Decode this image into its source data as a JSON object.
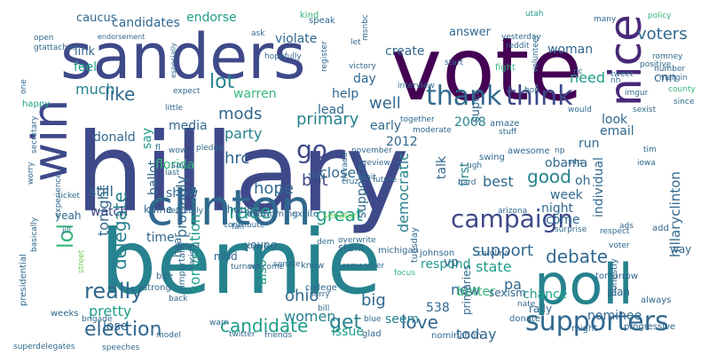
{
  "palette": {
    "c0": "#440154",
    "c1": "#482878",
    "c2": "#3e4989",
    "c3": "#31688e",
    "c4": "#26828e",
    "c5": "#1f9e89",
    "c6": "#35b779",
    "c7": "#6ece58",
    "c8": "#b5de2b",
    "c9": "#fde725"
  },
  "words": [
    {
      "text": "hillary",
      "c": "c2"
    },
    {
      "text": "vote",
      "c": "c0"
    },
    {
      "text": "bernie",
      "c": "c4"
    },
    {
      "text": "sanders",
      "c": "c2"
    },
    {
      "text": "clinton",
      "c": "c3"
    },
    {
      "text": "poll",
      "c": "c4"
    },
    {
      "text": "campaign",
      "c": "c2"
    },
    {
      "text": "win",
      "c": "c2"
    },
    {
      "text": "thank",
      "c": "c3"
    },
    {
      "text": "think",
      "c": "c2"
    },
    {
      "text": "nice",
      "c": "c1"
    },
    {
      "text": "supporters",
      "c": "c3"
    },
    {
      "text": "go",
      "c": "c2"
    },
    {
      "text": "really",
      "c": "c3"
    },
    {
      "text": "election",
      "c": "c3"
    },
    {
      "text": "like",
      "c": "c3"
    },
    {
      "text": "lol",
      "c": "c6"
    },
    {
      "text": "delegate",
      "c": "c4"
    },
    {
      "text": "convention",
      "c": "c5"
    },
    {
      "text": "candidate",
      "c": "c5"
    },
    {
      "text": "debate",
      "c": "c3"
    },
    {
      "text": "support",
      "c": "c3"
    },
    {
      "text": "primary",
      "c": "c4"
    },
    {
      "text": "get",
      "c": "c4"
    },
    {
      "text": "love",
      "c": "c3"
    },
    {
      "text": "great",
      "c": "c5"
    },
    {
      "text": "race",
      "c": "c5"
    },
    {
      "text": "democratic",
      "c": "c4"
    },
    {
      "text": "hillaryclinton",
      "c": "c3"
    },
    {
      "text": "voters",
      "c": "c3"
    },
    {
      "text": "lot",
      "c": "c4"
    },
    {
      "text": "mods",
      "c": "c3"
    },
    {
      "text": "party",
      "c": "c4"
    },
    {
      "text": "hrc",
      "c": "c3"
    },
    {
      "text": "hope",
      "c": "c3"
    },
    {
      "text": "good",
      "c": "c4"
    },
    {
      "text": "big",
      "c": "c3"
    },
    {
      "text": "women",
      "c": "c4"
    },
    {
      "text": "ohio",
      "c": "c3"
    },
    {
      "text": "pretty",
      "c": "c5"
    },
    {
      "text": "tonight",
      "c": "c3"
    },
    {
      "text": "bot",
      "c": "c2"
    },
    {
      "text": "close",
      "c": "c3"
    },
    {
      "text": "respond",
      "c": "c5"
    },
    {
      "text": "state",
      "c": "c5"
    },
    {
      "text": "today",
      "c": "c3"
    },
    {
      "text": "seem",
      "c": "c4"
    },
    {
      "text": "nominee",
      "c": "c3"
    },
    {
      "text": "new",
      "c": "c3"
    },
    {
      "text": "issue",
      "c": "c5"
    },
    {
      "text": "probably",
      "c": "c3"
    },
    {
      "text": "still",
      "c": "c3"
    },
    {
      "text": "watch",
      "c": "c2"
    },
    {
      "text": "better",
      "c": "c6"
    },
    {
      "text": "night",
      "c": "c3"
    },
    {
      "text": "week",
      "c": "c3"
    },
    {
      "text": "come",
      "c": "c3"
    },
    {
      "text": "obama",
      "c": "c3"
    },
    {
      "text": "best",
      "c": "c3"
    },
    {
      "text": "run",
      "c": "c3"
    },
    {
      "text": "email",
      "c": "c3"
    },
    {
      "text": "look",
      "c": "c3"
    },
    {
      "text": "need",
      "c": "c5"
    },
    {
      "text": "woman",
      "c": "c3"
    },
    {
      "text": "answer",
      "c": "c3"
    },
    {
      "text": "create",
      "c": "c3"
    },
    {
      "text": "violate",
      "c": "c3"
    },
    {
      "text": "endorse",
      "c": "c5"
    },
    {
      "text": "candidates",
      "c": "c3"
    },
    {
      "text": "day",
      "c": "c3"
    },
    {
      "text": "caucus",
      "c": "c3"
    },
    {
      "text": "link",
      "c": "c3"
    },
    {
      "text": "feel",
      "c": "c5"
    },
    {
      "text": "much",
      "c": "c4"
    },
    {
      "text": "donald",
      "c": "c3"
    },
    {
      "text": "warren",
      "c": "c6"
    },
    {
      "text": "media",
      "c": "c3"
    },
    {
      "text": "say",
      "c": "c5"
    },
    {
      "text": "help",
      "c": "c3"
    },
    {
      "text": "well",
      "c": "c3"
    },
    {
      "text": "lead",
      "c": "c3"
    },
    {
      "text": "early",
      "c": "c3"
    },
    {
      "text": "first",
      "c": "c4"
    },
    {
      "text": "super",
      "c": "c3"
    },
    {
      "text": "cnn",
      "c": "c3"
    },
    {
      "text": "florida",
      "c": "c6"
    },
    {
      "text": "ballot",
      "c": "c3"
    },
    {
      "text": "kaine",
      "c": "c3"
    },
    {
      "text": "show",
      "c": "c3"
    },
    {
      "text": "though",
      "c": "c3"
    },
    {
      "text": "time",
      "c": "c3"
    },
    {
      "text": "also",
      "c": "c5"
    },
    {
      "text": "538",
      "c": "c3"
    },
    {
      "text": "primaries",
      "c": "c3"
    },
    {
      "text": "pa",
      "c": "c3"
    },
    {
      "text": "chance",
      "c": "c5"
    },
    {
      "text": "vp",
      "c": "c3"
    },
    {
      "text": "individual",
      "c": "c3"
    },
    {
      "text": "oh",
      "c": "c3"
    },
    {
      "text": "supporter",
      "c": "c3"
    },
    {
      "text": "talk",
      "c": "c3"
    },
    {
      "text": "2012",
      "c": "c3"
    },
    {
      "text": "2008",
      "c": "c4"
    },
    {
      "text": "hear",
      "c": "c3"
    },
    {
      "text": "young",
      "c": "c3"
    },
    {
      "text": "lose",
      "c": "c3"
    },
    {
      "text": "kind",
      "c": "c6"
    },
    {
      "text": "speak",
      "c": "c3"
    },
    {
      "text": "utah",
      "c": "c5"
    },
    {
      "text": "policy",
      "c": "c6"
    },
    {
      "text": "romney",
      "c": "c3"
    },
    {
      "text": "number",
      "c": "c3"
    },
    {
      "text": "margin",
      "c": "c3"
    },
    {
      "text": "county",
      "c": "c6"
    },
    {
      "text": "since",
      "c": "c3"
    },
    {
      "text": "mod",
      "c": "c3"
    },
    {
      "text": "even",
      "c": "c3"
    },
    {
      "text": "morning",
      "c": "c3"
    },
    {
      "text": "excite",
      "c": "c3"
    },
    {
      "text": "senator",
      "c": "c7"
    },
    {
      "text": "stein",
      "c": "c3"
    },
    {
      "text": "michigan",
      "c": "c3"
    },
    {
      "text": "johnson",
      "c": "c3"
    },
    {
      "text": "carolina",
      "c": "c3"
    },
    {
      "text": "honestly",
      "c": "c3"
    },
    {
      "text": "add",
      "c": "c3"
    },
    {
      "text": "way",
      "c": "c3"
    },
    {
      "text": "tomorrow",
      "c": "c3"
    },
    {
      "text": "plan",
      "c": "c3"
    },
    {
      "text": "always",
      "c": "c3"
    },
    {
      "text": "rally",
      "c": "c3"
    },
    {
      "text": "nate",
      "c": "c3"
    },
    {
      "text": "sexism",
      "c": "c3"
    },
    {
      "text": "tuesday",
      "c": "c3"
    },
    {
      "text": "donate",
      "c": "c3"
    },
    {
      "text": "might",
      "c": "c3"
    },
    {
      "text": "progressive",
      "c": "c3"
    },
    {
      "text": "nomination",
      "c": "c3"
    },
    {
      "text": "glad",
      "c": "c3"
    },
    {
      "text": "blue",
      "c": "c3"
    },
    {
      "text": "twitter",
      "c": "c3"
    },
    {
      "text": "friends",
      "c": "c3"
    },
    {
      "text": "speeches",
      "c": "c3"
    },
    {
      "text": "model",
      "c": "c3"
    },
    {
      "text": "superdelegates",
      "c": "c3"
    },
    {
      "text": "weeks",
      "c": "c3"
    },
    {
      "text": "brigade",
      "c": "c3"
    },
    {
      "text": "presidential",
      "c": "c3"
    },
    {
      "text": "college",
      "c": "c3"
    },
    {
      "text": "bill",
      "c": "c3"
    },
    {
      "text": "sorry",
      "c": "c3"
    },
    {
      "text": "strong",
      "c": "c3"
    },
    {
      "text": "bite",
      "c": "c3"
    },
    {
      "text": "back",
      "c": "c3"
    },
    {
      "text": "warn",
      "c": "c3"
    },
    {
      "text": "important",
      "c": "c3"
    },
    {
      "text": "kasich",
      "c": "c3"
    },
    {
      "text": "yeah",
      "c": "c3"
    },
    {
      "text": "jill",
      "c": "c3"
    },
    {
      "text": "basically",
      "c": "c3"
    },
    {
      "text": "street",
      "c": "c7"
    },
    {
      "text": "ticket",
      "c": "c3"
    },
    {
      "text": "turnout",
      "c": "c3"
    },
    {
      "text": "welcome",
      "c": "c3"
    },
    {
      "text": "senate",
      "c": "c3"
    },
    {
      "text": "know",
      "c": "c3"
    },
    {
      "text": "remember",
      "c": "c3"
    },
    {
      "text": "focus",
      "c": "c6"
    },
    {
      "text": "overwrite",
      "c": "c3"
    },
    {
      "text": "dem",
      "c": "c3"
    },
    {
      "text": "stay",
      "c": "c3"
    },
    {
      "text": "fan",
      "c": "c3"
    },
    {
      "text": "cycle",
      "c": "c3"
    },
    {
      "text": "definitely",
      "c": "c3"
    },
    {
      "text": "gonna",
      "c": "c3"
    },
    {
      "text": "contribute",
      "c": "c3"
    },
    {
      "text": "saw",
      "c": "c3"
    },
    {
      "text": "wow",
      "c": "c3"
    },
    {
      "text": "last",
      "c": "c3"
    },
    {
      "text": "fl",
      "c": "c3"
    },
    {
      "text": "experience",
      "c": "c3"
    },
    {
      "text": "secretary",
      "c": "c3"
    },
    {
      "text": "worry",
      "c": "c3"
    },
    {
      "text": "happy",
      "c": "c5"
    },
    {
      "text": "one",
      "c": "c3"
    },
    {
      "text": "open",
      "c": "c3"
    },
    {
      "text": "gtattached",
      "c": "c3"
    },
    {
      "text": "endorsement",
      "c": "c3"
    },
    {
      "text": "especially",
      "c": "c3"
    },
    {
      "text": "expect",
      "c": "c3"
    },
    {
      "text": "little",
      "c": "c3"
    },
    {
      "text": "pledge",
      "c": "c3"
    },
    {
      "text": "ask",
      "c": "c3"
    },
    {
      "text": "hopefully",
      "c": "c3"
    },
    {
      "text": "msnbc",
      "c": "c3"
    },
    {
      "text": "let",
      "c": "c3"
    },
    {
      "text": "victory",
      "c": "c3"
    },
    {
      "text": "register",
      "c": "c3"
    },
    {
      "text": "november",
      "c": "c3"
    },
    {
      "text": "review",
      "c": "c3"
    },
    {
      "text": "cruz",
      "c": "c3"
    },
    {
      "text": "nevada",
      "c": "c3"
    },
    {
      "text": "wait",
      "c": "c3"
    },
    {
      "text": "future",
      "c": "c3"
    },
    {
      "text": "interview",
      "c": "c3"
    },
    {
      "text": "together",
      "c": "c3"
    },
    {
      "text": "start",
      "c": "c3"
    },
    {
      "text": "yesterday",
      "c": "c3"
    },
    {
      "text": "reddit",
      "c": "c3"
    },
    {
      "text": "fight",
      "c": "c6"
    },
    {
      "text": "volunteer",
      "c": "c3"
    },
    {
      "text": "moderate",
      "c": "c3"
    },
    {
      "text": "amaze",
      "c": "c3"
    },
    {
      "text": "stuff",
      "c": "c3"
    },
    {
      "text": "swing",
      "c": "c3"
    },
    {
      "text": "awesome",
      "c": "c3"
    },
    {
      "text": "hard",
      "c": "c3"
    },
    {
      "text": "ugh",
      "c": "c3"
    },
    {
      "text": "arizona",
      "c": "c3"
    },
    {
      "text": "np",
      "c": "c3"
    },
    {
      "text": "s4p",
      "c": "c3"
    },
    {
      "text": "surprise",
      "c": "c3"
    },
    {
      "text": "ads",
      "c": "c3"
    },
    {
      "text": "respect",
      "c": "c3"
    },
    {
      "text": "voter",
      "c": "c3"
    },
    {
      "text": "iowa",
      "c": "c3"
    },
    {
      "text": "tim",
      "c": "c3"
    },
    {
      "text": "sexist",
      "c": "c3"
    },
    {
      "text": "positive",
      "c": "c3"
    },
    {
      "text": "imgur",
      "c": "c3"
    },
    {
      "text": "tweet",
      "c": "c3"
    },
    {
      "text": "hop",
      "c": "c3"
    },
    {
      "text": "nc",
      "c": "c3"
    },
    {
      "text": "would",
      "c": "c3"
    },
    {
      "text": "many",
      "c": "c3"
    },
    {
      "text": "nh",
      "c": "c3"
    }
  ]
}
